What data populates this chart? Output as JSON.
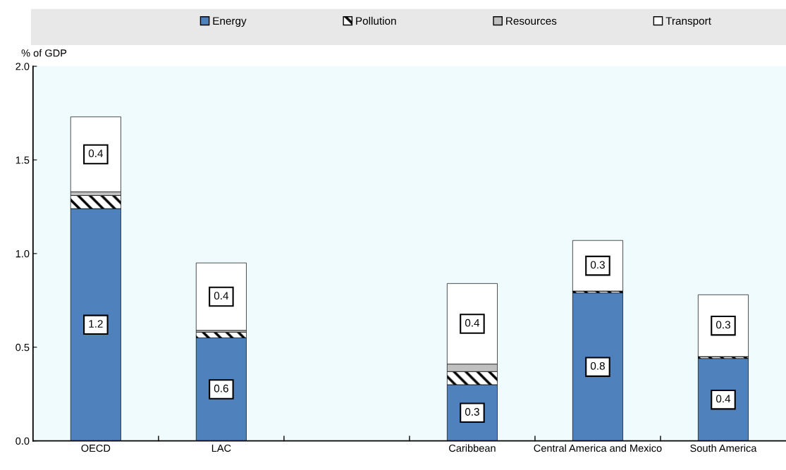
{
  "chart_data": {
    "type": "bar",
    "stacked": true,
    "ylabel": "% of GDP",
    "categories": [
      "OECD",
      "LAC",
      null,
      "Caribbean",
      "Central America and Mexico",
      "South America"
    ],
    "series": [
      {
        "name": "Energy",
        "color": "#4f81bd",
        "values": [
          1.24,
          0.55,
          null,
          0.3,
          0.79,
          0.44
        ],
        "value_labels": [
          "1.2",
          "0.6",
          null,
          "0.3",
          "0.8",
          "0.4"
        ]
      },
      {
        "name": "Pollution",
        "color": "#000000",
        "values": [
          0.07,
          0.03,
          null,
          0.07,
          0.01,
          0.01
        ]
      },
      {
        "name": "Resources",
        "color": "#c0c0c0",
        "values": [
          0.02,
          0.01,
          null,
          0.04,
          0.0,
          0.0
        ]
      },
      {
        "name": "Transport",
        "color": "#ffffff",
        "values": [
          0.4,
          0.36,
          null,
          0.43,
          0.27,
          0.33
        ],
        "value_labels": [
          "0.4",
          "0.4",
          null,
          "0.4",
          "0.3",
          "0.3"
        ]
      }
    ],
    "ylim": [
      0,
      2.0
    ],
    "yticks": [
      {
        "value": 0,
        "label": "0.0"
      },
      {
        "value": 0.5,
        "label": "0.5"
      },
      {
        "value": 1.0,
        "label": "1.0"
      },
      {
        "value": 1.5,
        "label": "1.5"
      },
      {
        "value": 2.0,
        "label": "2.0"
      }
    ],
    "legend": "top",
    "grid": false
  }
}
